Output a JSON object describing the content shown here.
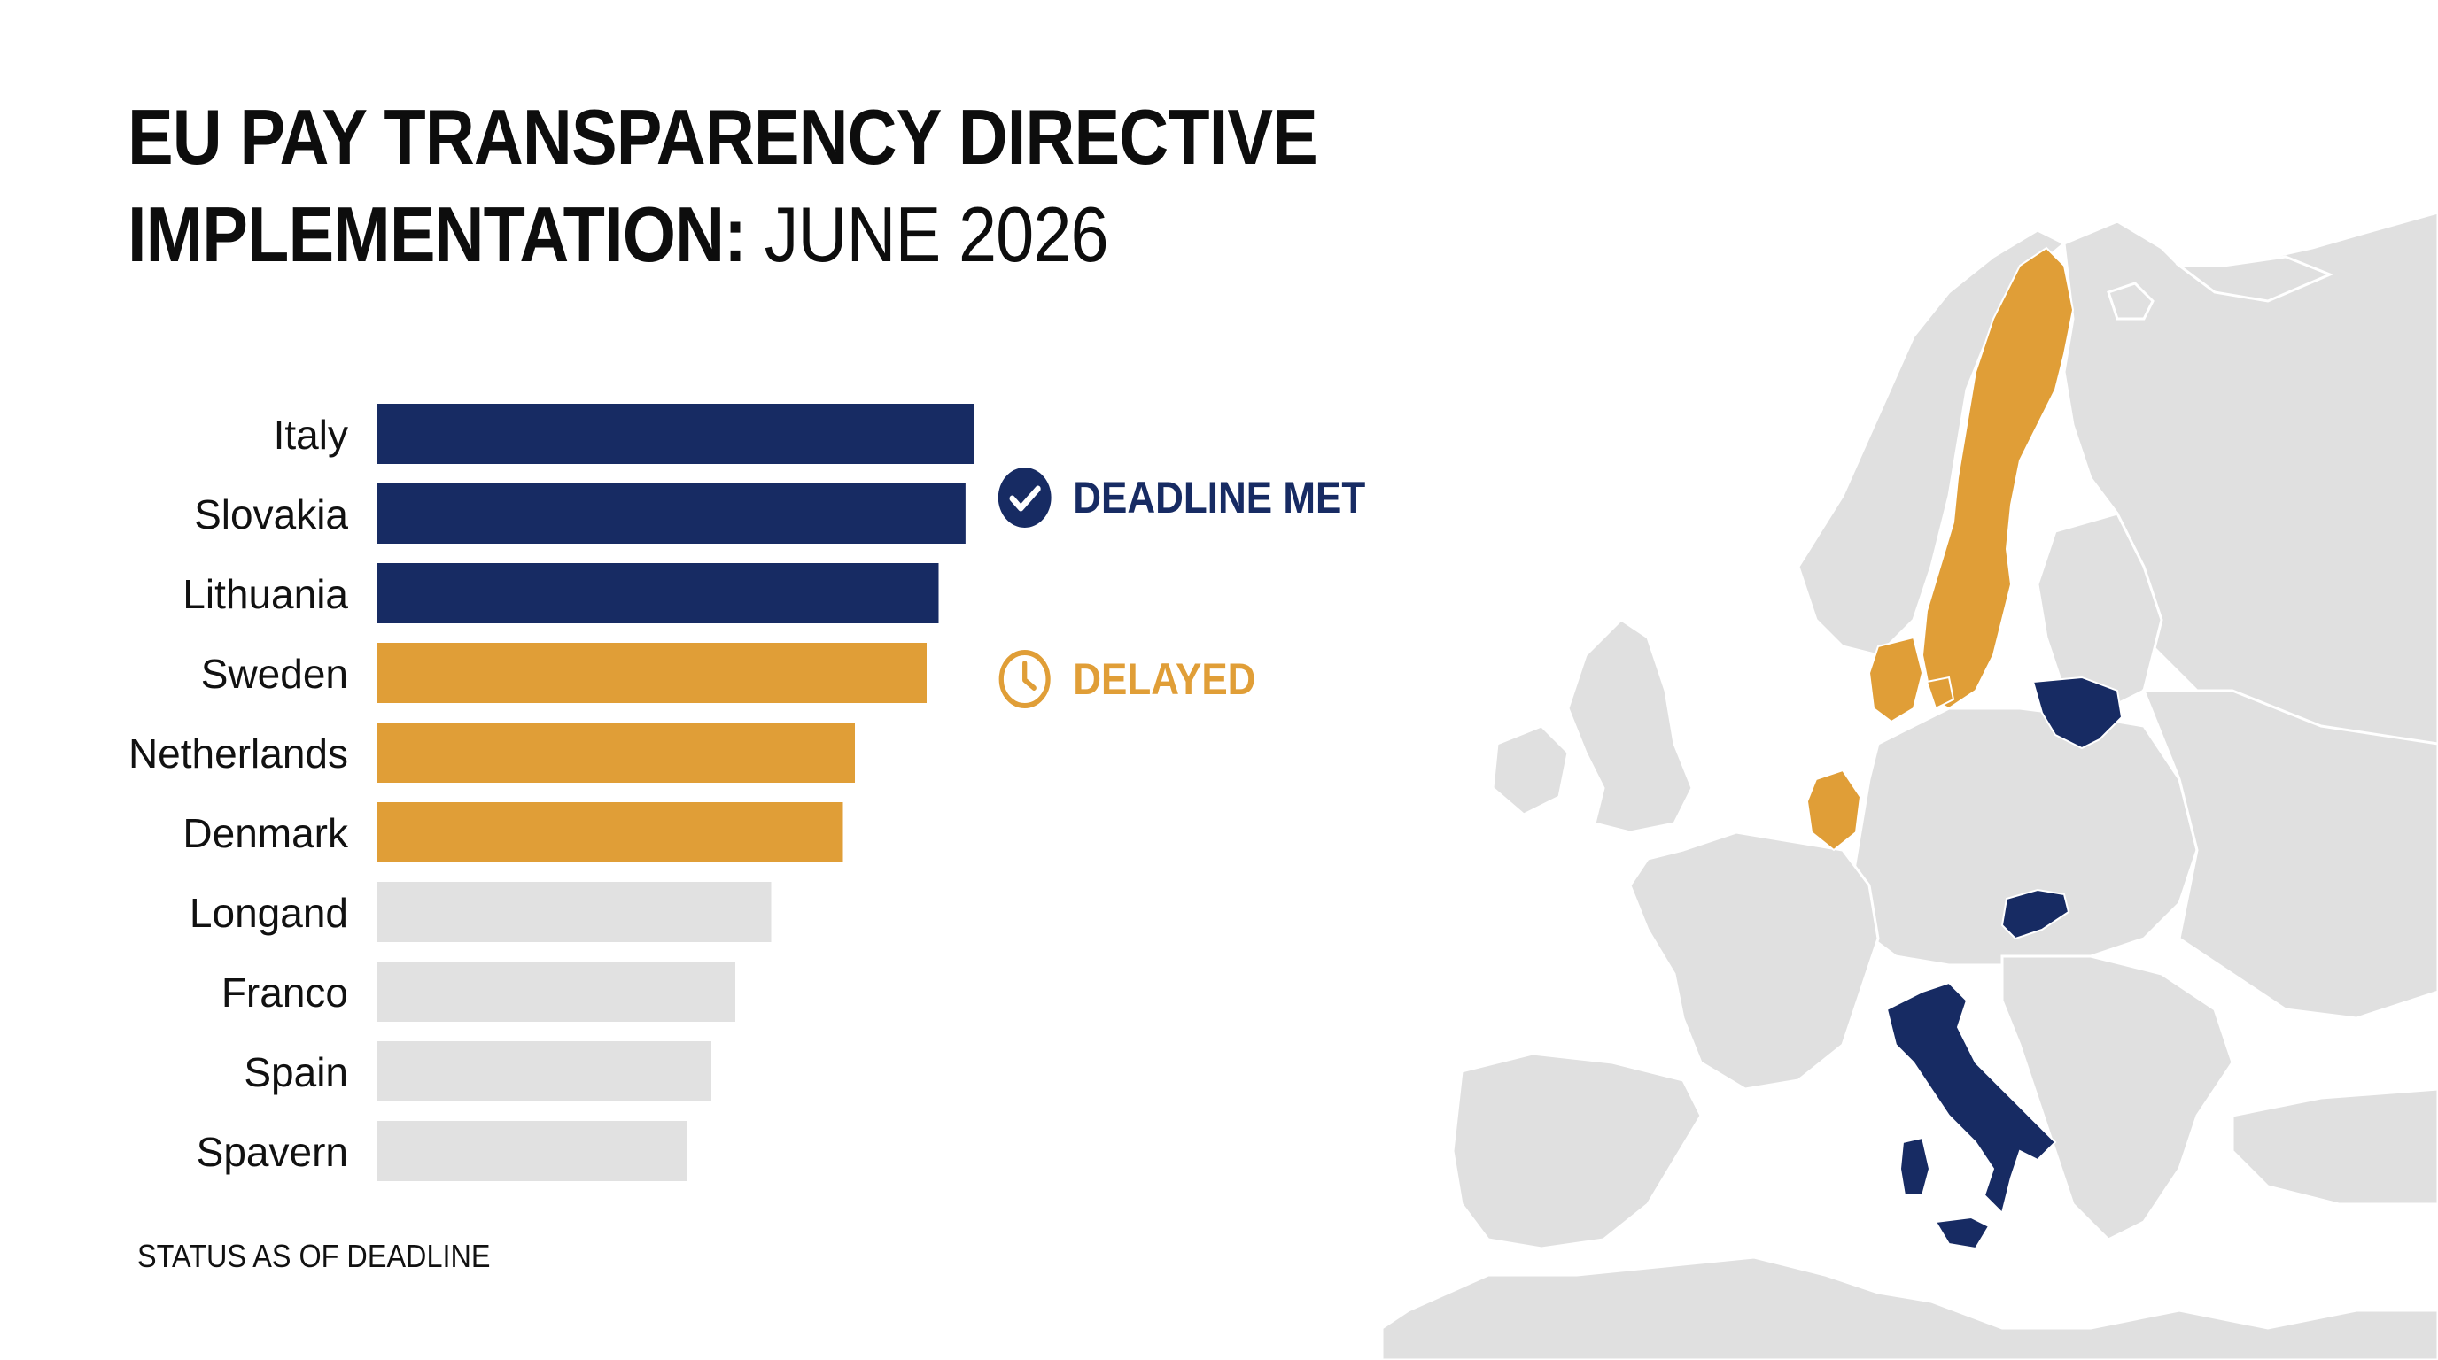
{
  "title": {
    "line1": "EU PAY TRANSPARENCY DIRECTIVE",
    "line2_bold": "IMPLEMENTATION:",
    "line2_light": "JUNE 2026"
  },
  "legend": {
    "met": {
      "label": "DEADLINE MET",
      "color": "#172b63",
      "icon": "check-circle-icon"
    },
    "delayed": {
      "label": "DELAYED",
      "color": "#e09e37",
      "icon": "clock-icon"
    }
  },
  "note": "STATUS AS OF DEADLINE",
  "colors": {
    "met": "#172b63",
    "delayed": "#e09e37",
    "other": "#e1e1e1",
    "map_land": "#e0e0e0",
    "map_sea": "#ffffff"
  },
  "chart_data": {
    "type": "bar",
    "orientation": "horizontal",
    "categories": [
      "Italy",
      "Slovakia",
      "Lithuania",
      "Sweden",
      "Netherlands",
      "Denmark",
      "Longand",
      "Franco",
      "Spain",
      "Spavern"
    ],
    "values": [
      100,
      98.5,
      94,
      92,
      80,
      78,
      66,
      60,
      56,
      52
    ],
    "status": [
      "met",
      "met",
      "met",
      "delayed",
      "delayed",
      "delayed",
      "other",
      "other",
      "other",
      "other"
    ],
    "xlim": [
      0,
      100
    ],
    "grid": false,
    "legend_position": "right"
  },
  "map": {
    "highlighted_met": [
      "Italy",
      "Slovakia",
      "Lithuania"
    ],
    "highlighted_delayed": [
      "Sweden",
      "Netherlands",
      "Denmark"
    ]
  }
}
